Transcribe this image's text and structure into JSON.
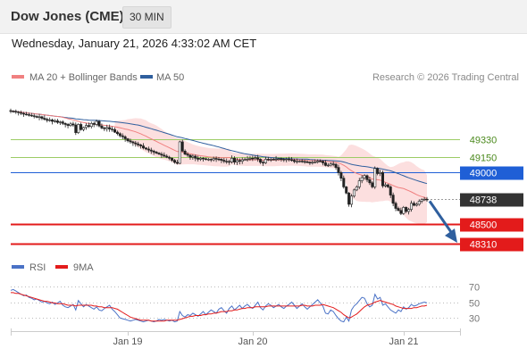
{
  "header": {
    "title": "Dow Jones (CME)",
    "timeframe": "30 MIN",
    "timestamp": "Wednesday, January 21, 2026 4:33:02 AM CET"
  },
  "legend": {
    "ma20_bb": "MA 20 + Bollinger Bands",
    "ma50": "MA 50",
    "credit": "Research © 2026 Trading Central"
  },
  "rsi_legend": {
    "rsi": "RSI",
    "ma9": "9MA"
  },
  "colors": {
    "ma20": "#f08080",
    "ma50": "#2f5f9e",
    "bollinger_fill": "#fbd2d2",
    "resistance": "#9ccc65",
    "pivot": "#1f5fd6",
    "support": "#e31b1b",
    "last_price": "#333333",
    "rsi": "#4a72c6",
    "rsi_ma": "#e31b1b"
  },
  "chart_data": [
    {
      "type": "candlestick",
      "title": "Dow Jones (CME)",
      "timeframe": "30 MIN",
      "x_tick_labels": [
        "Jan 19",
        "Jan 20",
        "Jan 21"
      ],
      "ylim": [
        48250,
        49750
      ],
      "last_price": 48738,
      "levels": [
        {
          "value": 49330,
          "label": "49330",
          "role": "resistance"
        },
        {
          "value": 49150,
          "label": "49150",
          "role": "resistance"
        },
        {
          "value": 49000,
          "label": "49000",
          "role": "pivot"
        },
        {
          "value": 48738,
          "label": "48738",
          "role": "last"
        },
        {
          "value": 48500,
          "label": "48500",
          "role": "support"
        },
        {
          "value": 48310,
          "label": "48310",
          "role": "support"
        }
      ],
      "close": [
        49600,
        49598,
        49592,
        49585,
        49578,
        49570,
        49566,
        49560,
        49555,
        49548,
        49540,
        49545,
        49530,
        49520,
        49510,
        49515,
        49500,
        49505,
        49490,
        49495,
        49480,
        49470,
        49460,
        49475,
        49465,
        49390,
        49470,
        49420,
        49440,
        49460,
        49450,
        49480,
        49470,
        49500,
        49455,
        49435,
        49430,
        49440,
        49425,
        49420,
        49395,
        49380,
        49360,
        49350,
        49330,
        49310,
        49300,
        49290,
        49280,
        49270,
        49260,
        49240,
        49230,
        49220,
        49210,
        49200,
        49190,
        49180,
        49170,
        49160,
        49150,
        49140,
        49120,
        49100,
        49090,
        49300,
        49210,
        49180,
        49170,
        49150,
        49160,
        49140,
        49130,
        49140,
        49135,
        49128,
        49130,
        49125,
        49138,
        49132,
        49130,
        49120,
        49110,
        49108,
        49105,
        49140,
        49102,
        49118,
        49110,
        49125,
        49128,
        49132,
        49140,
        49138,
        49145,
        49130,
        49100,
        49095,
        49130,
        49125,
        49130,
        49128,
        49132,
        49135,
        49130,
        49128,
        49132,
        49125,
        49120,
        49108,
        49110,
        49112,
        49108,
        49105,
        49100,
        49098,
        49100,
        49102,
        49112,
        49110,
        49095,
        49070,
        49072,
        49085,
        49080,
        49050,
        49000,
        48945,
        48860,
        48800,
        48690,
        48770,
        48830,
        48860,
        48920,
        48950,
        48970,
        48930,
        48900,
        48860,
        49040,
        48990,
        49000,
        48870,
        48880,
        48860,
        48780,
        48700,
        48650,
        48630,
        48600,
        48660,
        48620,
        48640,
        48700,
        48680,
        48690,
        48720,
        48735,
        48740,
        48738
      ],
      "series": [
        {
          "name": "MA 20 + Bollinger Bands"
        },
        {
          "name": "MA 50"
        }
      ]
    },
    {
      "type": "line",
      "name": "RSI",
      "ylim": [
        20,
        80
      ],
      "y_tick_labels": [
        "70",
        "50",
        "30"
      ],
      "guides": [
        70,
        50,
        30
      ],
      "rsi": [
        65,
        66,
        64,
        62,
        60,
        58,
        59,
        56,
        55,
        53,
        54,
        52,
        50,
        51,
        49,
        48,
        50,
        47,
        49,
        51,
        46,
        44,
        43,
        45,
        47,
        40,
        52,
        48,
        44,
        47,
        45,
        43,
        41,
        44,
        40,
        39,
        42,
        44,
        46,
        41,
        38,
        34,
        30,
        29,
        28,
        27,
        26,
        27,
        28,
        27,
        26,
        25,
        26,
        27,
        26,
        25,
        26,
        28,
        27,
        28,
        27,
        26,
        27,
        25,
        26,
        38,
        33,
        31,
        34,
        33,
        36,
        34,
        32,
        35,
        38,
        34,
        37,
        40,
        38,
        36,
        41,
        43,
        39,
        36,
        42,
        45,
        40,
        43,
        46,
        42,
        45,
        47,
        44,
        42,
        46,
        50,
        43,
        40,
        45,
        48,
        46,
        43,
        45,
        47,
        44,
        42,
        45,
        47,
        50,
        46,
        42,
        45,
        48,
        44,
        41,
        44,
        47,
        50,
        53,
        49,
        45,
        36,
        35,
        40,
        38,
        33,
        29,
        26,
        25,
        31,
        26,
        40,
        45,
        48,
        52,
        56,
        55,
        48,
        44,
        46,
        60,
        54,
        56,
        46,
        48,
        44,
        40,
        38,
        36,
        40,
        38,
        44,
        41,
        43,
        47,
        45,
        46,
        48,
        49,
        50,
        49
      ],
      "rsi_ma": [
        62,
        62,
        61,
        61,
        60,
        59,
        58,
        57,
        56,
        55,
        54,
        53,
        52,
        51,
        51,
        50,
        49,
        49,
        48,
        48,
        48,
        47,
        46,
        46,
        46,
        45,
        46,
        46,
        46,
        46,
        46,
        46,
        45,
        45,
        44,
        44,
        43,
        43,
        43,
        43,
        42,
        41,
        39,
        37,
        35,
        33,
        31,
        30,
        29,
        28,
        27,
        27,
        27,
        27,
        26,
        26,
        26,
        26,
        26,
        26,
        27,
        27,
        27,
        27,
        27,
        28,
        29,
        30,
        31,
        32,
        32,
        33,
        33,
        33,
        34,
        34,
        35,
        35,
        36,
        36,
        37,
        38,
        38,
        38,
        39,
        39,
        40,
        40,
        41,
        42,
        42,
        43,
        43,
        43,
        44,
        44,
        44,
        44,
        44,
        45,
        45,
        45,
        45,
        45,
        45,
        45,
        45,
        45,
        45,
        45,
        45,
        45,
        46,
        46,
        45,
        45,
        45,
        46,
        46,
        46,
        47,
        46,
        45,
        44,
        43,
        41,
        39,
        37,
        34,
        32,
        30,
        31,
        33,
        35,
        38,
        41,
        44,
        46,
        47,
        48,
        50,
        51,
        52,
        51,
        50,
        49,
        48,
        47,
        45,
        44,
        43,
        42,
        42,
        42,
        42,
        43,
        43,
        44,
        45,
        45,
        46
      ],
      "series": [
        {
          "name": "RSI"
        },
        {
          "name": "9MA"
        }
      ]
    }
  ]
}
